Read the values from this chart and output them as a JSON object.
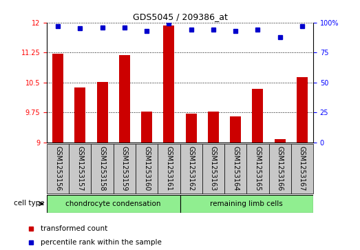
{
  "title": "GDS5045 / 209386_at",
  "samples": [
    "GSM1253156",
    "GSM1253157",
    "GSM1253158",
    "GSM1253159",
    "GSM1253160",
    "GSM1253161",
    "GSM1253162",
    "GSM1253163",
    "GSM1253164",
    "GSM1253165",
    "GSM1253166",
    "GSM1253167"
  ],
  "bar_values": [
    11.22,
    10.38,
    10.51,
    11.18,
    9.78,
    11.93,
    9.72,
    9.78,
    9.66,
    10.35,
    9.08,
    10.63
  ],
  "percentile_values": [
    97,
    95,
    96,
    96,
    93,
    99,
    94,
    94,
    93,
    94,
    88,
    97
  ],
  "bar_color": "#cc0000",
  "dot_color": "#0000cc",
  "ylim_left": [
    9,
    12
  ],
  "ylim_right": [
    0,
    100
  ],
  "yticks_left": [
    9,
    9.75,
    10.5,
    11.25,
    12
  ],
  "yticks_right": [
    0,
    25,
    50,
    75,
    100
  ],
  "group1_label": "chondrocyte condensation",
  "group2_label": "remaining limb cells",
  "group1_count": 6,
  "group2_count": 6,
  "cell_type_label": "cell type",
  "legend1": "transformed count",
  "legend2": "percentile rank within the sample",
  "bar_width": 0.5,
  "sample_box_color": "#c8c8c8",
  "green_color": "#90ee90",
  "title_fontsize": 9,
  "tick_fontsize": 7,
  "label_fontsize": 7,
  "group_fontsize": 7.5,
  "legend_fontsize": 7.5
}
